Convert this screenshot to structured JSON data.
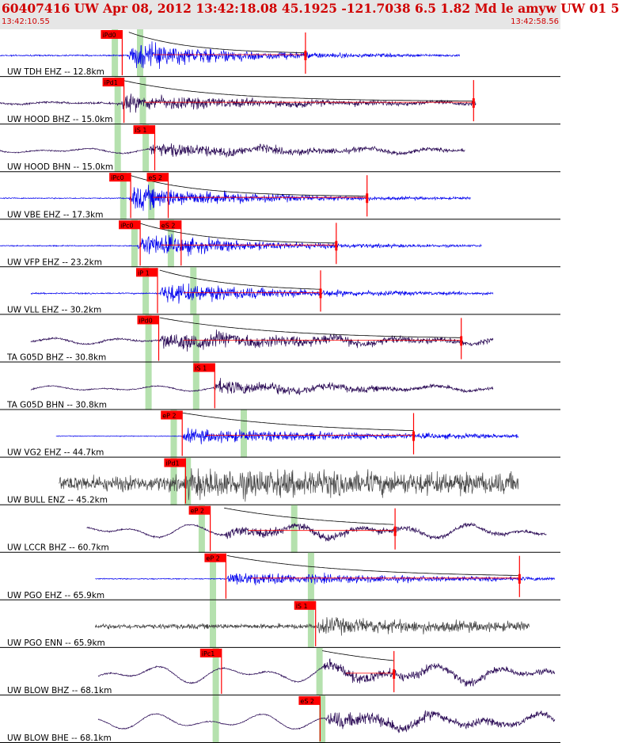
{
  "header": {
    "title": "60407416 UW Apr 08, 2012 13:42:18.08   45.1925 -121.7038  6.5 1.82 Md le amyw UW 01   5",
    "time_start": "13:42:10.55",
    "time_end": "13:42:58.56"
  },
  "colors": {
    "blue": "#0000ee",
    "purple": "#2a0a55",
    "gray": "#444444",
    "pick_red": "#ff0000",
    "window_green": "#a8dca0",
    "header_bg": "#e6e6e6"
  },
  "chart_data": {
    "type": "line",
    "title": "60407416 UW Apr 08, 2012 13:42:18.08   45.1925 -121.7038  6.5 1.82 Md le amyw UW 01   5",
    "x_range": [
      "13:42:10.55",
      "13:42:58.56"
    ],
    "traces": [
      {
        "label": "UW TDH EHZ -- 12.8km",
        "color": "blue",
        "start": 0.0,
        "end": 0.82,
        "onset": 0.23,
        "amp": 1.0,
        "noise": 0.05,
        "wave": 0.0,
        "decay": 0.18,
        "coda": true,
        "end_mark": 0.545,
        "picks": [
          {
            "label": "iPd0",
            "x": 0.18
          }
        ],
        "windows": [
          0.205,
          0.25
        ]
      },
      {
        "label": "UW HOOD BHZ -- 15.0km",
        "color": "purple",
        "start": 0.0,
        "end": 0.85,
        "onset": 0.215,
        "amp": 0.55,
        "noise": 0.08,
        "wave": 0.05,
        "decay": 0.28,
        "coda": true,
        "end_mark": 0.845,
        "picks": [
          {
            "label": "iPd1",
            "x": 0.183
          }
        ],
        "windows": [
          0.21,
          0.255
        ]
      },
      {
        "label": "UW HOOD BHN -- 15.0km",
        "color": "purple",
        "start": 0.0,
        "end": 0.83,
        "onset": 0.265,
        "amp": 0.5,
        "noise": 0.05,
        "wave": 0.12,
        "decay": 0.28,
        "coda": false,
        "end_mark": null,
        "picks": [
          {
            "label": "iS 1",
            "x": 0.238
          }
        ],
        "windows": [
          0.21,
          0.26
        ]
      },
      {
        "label": "UW VBE EHZ -- 17.3km",
        "color": "blue",
        "start": 0.0,
        "end": 0.84,
        "onset": 0.23,
        "amp": 0.9,
        "noise": 0.04,
        "wave": 0.0,
        "decay": 0.2,
        "coda": true,
        "end_mark": 0.655,
        "picks": [
          {
            "label": "iPc0",
            "x": 0.195
          },
          {
            "label": "eS 2",
            "x": 0.262
          }
        ],
        "windows": [
          0.22,
          0.27
        ]
      },
      {
        "label": "UW VFP EHZ -- 23.2km",
        "color": "blue",
        "start": 0.0,
        "end": 0.86,
        "onset": 0.245,
        "amp": 0.85,
        "noise": 0.04,
        "wave": 0.0,
        "decay": 0.2,
        "coda": true,
        "end_mark": 0.6,
        "picks": [
          {
            "label": "iPc0",
            "x": 0.212
          },
          {
            "label": "eS 2",
            "x": 0.285
          }
        ],
        "windows": [
          0.24,
          0.305
        ]
      },
      {
        "label": "UW VLL EHZ -- 30.2km",
        "color": "blue",
        "start": 0.055,
        "end": 0.88,
        "onset": 0.285,
        "amp": 0.75,
        "noise": 0.05,
        "wave": 0.0,
        "decay": 0.22,
        "coda": true,
        "end_mark": 0.572,
        "picks": [
          {
            "label": "iP 1",
            "x": 0.243
          }
        ],
        "windows": [
          0.26,
          0.345
        ]
      },
      {
        "label": "TA G05D BHZ -- 30.8km",
        "color": "purple",
        "start": 0.055,
        "end": 0.88,
        "onset": 0.285,
        "amp": 0.65,
        "noise": 0.07,
        "wave": 0.14,
        "decay": 0.35,
        "coda": true,
        "end_mark": 0.823,
        "picks": [
          {
            "label": "iPd0",
            "x": 0.245
          }
        ],
        "windows": [
          0.265,
          0.35
        ]
      },
      {
        "label": "TA G05D BHN -- 30.8km",
        "color": "purple",
        "start": 0.055,
        "end": 0.88,
        "onset": 0.38,
        "amp": 0.55,
        "noise": 0.04,
        "wave": 0.12,
        "decay": 0.25,
        "coda": false,
        "end_mark": null,
        "picks": [
          {
            "label": "iS 1",
            "x": 0.345
          }
        ],
        "windows": [
          0.265,
          0.35
        ]
      },
      {
        "label": "UW VG2 EHZ -- 44.7km",
        "color": "blue",
        "start": 0.1,
        "end": 0.925,
        "onset": 0.325,
        "amp": 0.5,
        "noise": 0.03,
        "wave": 0.0,
        "decay": 0.4,
        "coda": true,
        "end_mark": 0.738,
        "picks": [
          {
            "label": "eP 2",
            "x": 0.287
          }
        ],
        "windows": [
          0.31,
          0.435
        ]
      },
      {
        "label": "UW BULL ENZ -- 45.2km",
        "color": "gray",
        "start": 0.105,
        "end": 0.925,
        "onset": 0.33,
        "amp": 0.55,
        "noise": 0.55,
        "wave": 0.0,
        "decay": 0.6,
        "coda": false,
        "end_mark": null,
        "picks": [
          {
            "label": "iPd1",
            "x": 0.293
          }
        ],
        "windows": [
          0.31,
          0.335
        ]
      },
      {
        "label": "UW LCCR BHZ -- 60.7km",
        "color": "purple",
        "start": 0.155,
        "end": 0.975,
        "onset": 0.4,
        "amp": 0.35,
        "noise": 0.06,
        "wave": 0.3,
        "decay": 0.35,
        "coda": true,
        "end_mark": 0.705,
        "picks": [
          {
            "label": "eP 2",
            "x": 0.337
          }
        ],
        "windows": [
          0.36,
          0.525
        ]
      },
      {
        "label": "UW PGO EHZ -- 65.9km",
        "color": "blue",
        "start": 0.17,
        "end": 0.99,
        "onset": 0.405,
        "amp": 0.45,
        "noise": 0.04,
        "wave": 0.0,
        "decay": 0.35,
        "coda": true,
        "end_mark": 0.927,
        "picks": [
          {
            "label": "eP 2",
            "x": 0.365
          }
        ],
        "windows": [
          0.38,
          0.555
        ]
      },
      {
        "label": "UW PGO ENN -- 65.9km",
        "color": "gray",
        "start": 0.17,
        "end": 0.945,
        "onset": 0.565,
        "amp": 0.45,
        "noise": 0.18,
        "wave": 0.0,
        "decay": 0.35,
        "coda": false,
        "end_mark": null,
        "picks": [
          {
            "label": "iS 1",
            "x": 0.525
          }
        ],
        "windows": [
          0.38,
          0.555
        ]
      },
      {
        "label": "UW BLOW BHZ -- 68.1km",
        "color": "purple",
        "start": 0.175,
        "end": 0.99,
        "onset": 0.575,
        "amp": 0.45,
        "noise": 0.05,
        "wave": 0.4,
        "decay": 0.35,
        "coda": true,
        "end_mark": 0.703,
        "picks": [
          {
            "label": "iPc1",
            "x": 0.357
          }
        ],
        "windows": [
          0.385,
          0.57
        ]
      },
      {
        "label": "UW BLOW BHE -- 68.1km",
        "color": "purple",
        "start": 0.175,
        "end": 0.99,
        "onset": 0.58,
        "amp": 0.6,
        "noise": 0.04,
        "wave": 0.35,
        "decay": 0.3,
        "coda": false,
        "end_mark": null,
        "picks": [
          {
            "label": "eS 2",
            "x": 0.533
          }
        ],
        "windows": [
          0.385,
          0.575
        ]
      }
    ]
  }
}
